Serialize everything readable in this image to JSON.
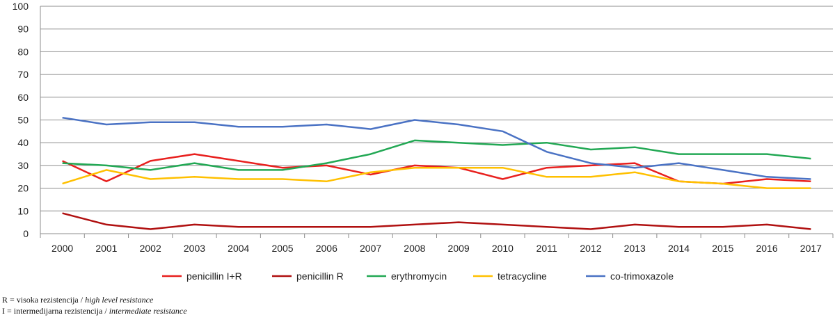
{
  "chart_data": {
    "type": "line",
    "categories": [
      "2000",
      "2001",
      "2002",
      "2003",
      "2004",
      "2005",
      "2006",
      "2007",
      "2008",
      "2009",
      "2010",
      "2011",
      "2012",
      "2013",
      "2014",
      "2015",
      "2016",
      "2017"
    ],
    "ylim": [
      0,
      100
    ],
    "yticks": [
      "0",
      "10",
      "20",
      "30",
      "40",
      "50",
      "60",
      "70",
      "80",
      "90",
      "100"
    ],
    "grid": true,
    "legend_position": "bottom",
    "series": [
      {
        "name": "penicillin I+R",
        "color": "#e8201e",
        "values": [
          32,
          23,
          32,
          35,
          32,
          29,
          30,
          26,
          30,
          29,
          24,
          29,
          30,
          31,
          23,
          22,
          24,
          23
        ]
      },
      {
        "name": "penicillin R",
        "color": "#b01010",
        "values": [
          9,
          4,
          2,
          4,
          3,
          3,
          3,
          3,
          4,
          5,
          4,
          3,
          2,
          4,
          3,
          3,
          4,
          2
        ]
      },
      {
        "name": "erythromycin",
        "color": "#22a854",
        "values": [
          31,
          30,
          28,
          31,
          28,
          28,
          31,
          35,
          41,
          40,
          39,
          40,
          37,
          38,
          35,
          35,
          35,
          33
        ]
      },
      {
        "name": "tetracycline",
        "color": "#ffc000",
        "values": [
          22,
          28,
          24,
          25,
          24,
          24,
          23,
          27,
          29,
          29,
          29,
          25,
          25,
          27,
          23,
          22,
          20,
          20
        ]
      },
      {
        "name": "co-trimoxazole",
        "color": "#4a72c4",
        "values": [
          51,
          48,
          49,
          49,
          47,
          47,
          48,
          46,
          50,
          48,
          45,
          36,
          31,
          29,
          31,
          28,
          25,
          24
        ]
      }
    ]
  },
  "notes": [
    {
      "local": "R = visoka rezistencija / ",
      "en": "high level resistance"
    },
    {
      "local": "I = intermedijarna rezistencija / ",
      "en": "intermediate resistance"
    }
  ]
}
